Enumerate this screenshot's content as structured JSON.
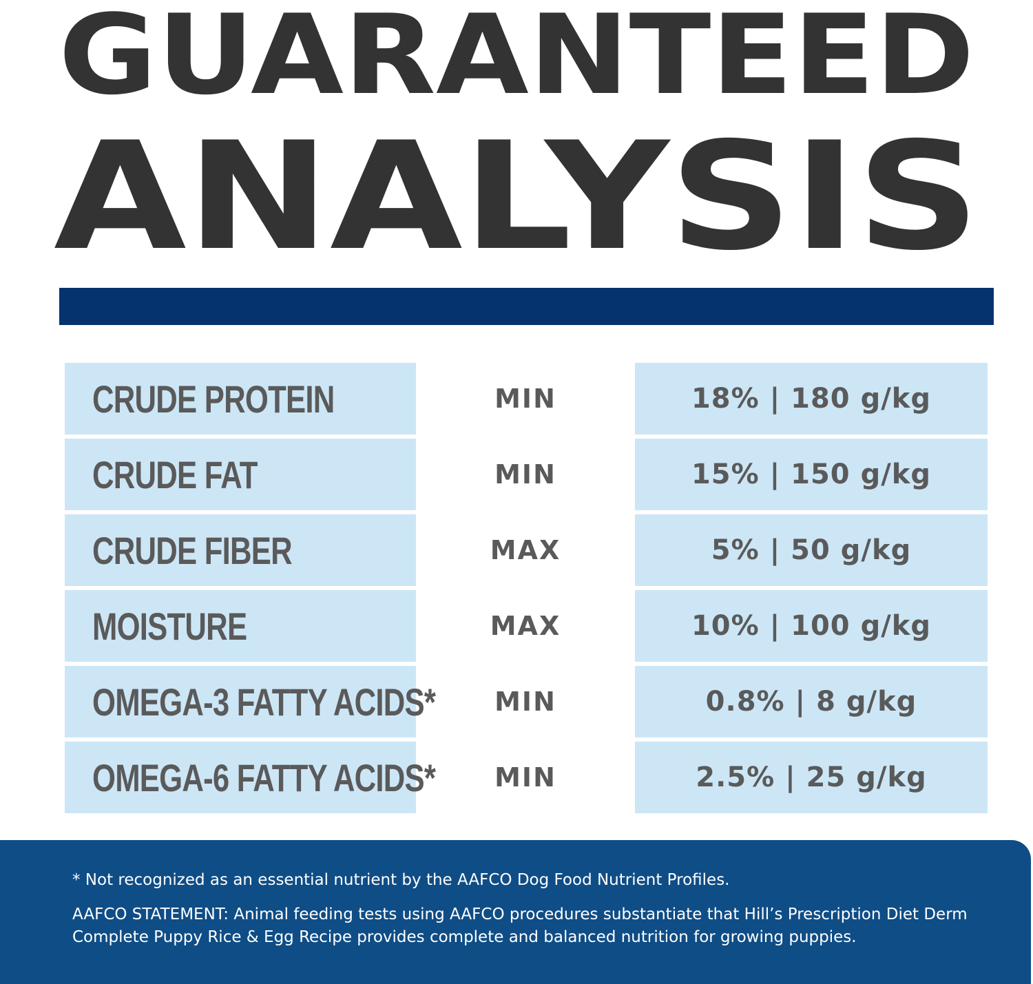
{
  "title": {
    "line1": "GUARANTEED",
    "line2": "ANALYSIS"
  },
  "colors": {
    "title_text": "#333333",
    "accent_bar": "#04336d",
    "cell_background": "#cce6f6",
    "cell_text": "#5a5a5a",
    "footer_background": "#0f4d86",
    "footer_text": "#ffffff"
  },
  "rows": [
    {
      "name": "CRUDE PROTEIN",
      "type": "MIN",
      "value": "18% | 180 g/kg"
    },
    {
      "name": "CRUDE FAT",
      "type": "MIN",
      "value": "15% | 150 g/kg"
    },
    {
      "name": "CRUDE FIBER",
      "type": "MAX",
      "value": "5% | 50 g/kg"
    },
    {
      "name": "MOISTURE",
      "type": "MAX",
      "value": "10% | 100 g/kg"
    },
    {
      "name": "OMEGA-3 FATTY ACIDS*",
      "type": "MIN",
      "value": "0.8% | 8 g/kg"
    },
    {
      "name": "OMEGA-6 FATTY ACIDS*",
      "type": "MIN",
      "value": "2.5% | 25 g/kg"
    }
  ],
  "footer": {
    "footnote": "* Not recognized as an essential nutrient by the AAFCO Dog Food Nutrient Profiles.",
    "statement": "AAFCO STATEMENT: Animal feeding tests using AAFCO procedures substantiate that Hill’s Prescription Diet Derm Complete Puppy Rice & Egg Recipe provides complete and balanced nutrition for growing puppies."
  }
}
